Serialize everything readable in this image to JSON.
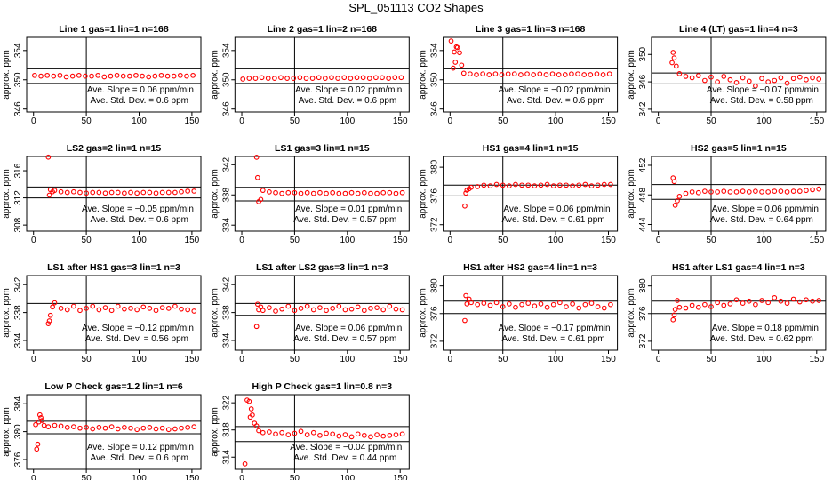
{
  "title": "SPL_051113  CO2 Shapes",
  "chart_data": [
    {
      "type": "scatter",
      "title": "Line 1 gas=1 lin=1 n=168",
      "ylabel": "approx. ppm",
      "color": "#ff0000",
      "xlim": [
        -6.5,
        158.5
      ],
      "xticks": [
        0,
        50,
        100,
        150
      ],
      "ylim": [
        345.6,
        355.8
      ],
      "yticks": [
        346,
        350,
        354
      ],
      "hlines": [
        351.5,
        349.5
      ],
      "vline": 50,
      "x": [
        1,
        7,
        13,
        19,
        25,
        31,
        37,
        43,
        49,
        55,
        61,
        67,
        73,
        79,
        85,
        91,
        97,
        103,
        109,
        115,
        121,
        127,
        133,
        139,
        145,
        151
      ],
      "values": [
        350.6,
        350.5,
        350.6,
        350.5,
        350.6,
        350.4,
        350.5,
        350.6,
        350.5,
        350.5,
        350.6,
        350.4,
        350.5,
        350.6,
        350.5,
        350.5,
        350.6,
        350.5,
        350.4,
        350.5,
        350.6,
        350.5,
        350.5,
        350.6,
        350.5,
        350.6
      ],
      "annotations": [
        "Ave. Slope = 0.06  ppm/min",
        "Ave. Std. Dev. = 0.6  ppm"
      ]
    },
    {
      "type": "scatter",
      "title": "Line 2 gas=1 lin=2 n=168",
      "ylabel": "approx. ppm",
      "color": "#ff0000",
      "xlim": [
        -6.5,
        158.5
      ],
      "xticks": [
        0,
        50,
        100,
        150
      ],
      "ylim": [
        345.6,
        355.8
      ],
      "yticks": [
        346,
        350,
        354
      ],
      "hlines": [
        351.5,
        349.5
      ],
      "vline": 50,
      "x": [
        1,
        7,
        13,
        19,
        25,
        31,
        37,
        43,
        49,
        55,
        61,
        67,
        73,
        79,
        85,
        91,
        97,
        103,
        109,
        115,
        121,
        127,
        133,
        139,
        145,
        151
      ],
      "values": [
        350.1,
        350.2,
        350.2,
        350.3,
        350.2,
        350.2,
        350.3,
        350.2,
        350.2,
        350.3,
        350.2,
        350.2,
        350.3,
        350.2,
        350.3,
        350.2,
        350.3,
        350.2,
        350.3,
        350.3,
        350.2,
        350.3,
        350.3,
        350.2,
        350.3,
        350.3
      ],
      "annotations": [
        "Ave. Slope = 0.02  ppm/min",
        "Ave. Std. Dev. = 0.6  ppm"
      ]
    },
    {
      "type": "scatter",
      "title": "Line 3 gas=1 lin=3 n=168",
      "ylabel": "approx. ppm",
      "color": "#ff0000",
      "xlim": [
        -6.5,
        158.5
      ],
      "xticks": [
        0,
        50,
        100,
        150
      ],
      "ylim": [
        345.6,
        355.8
      ],
      "yticks": [
        346,
        350,
        354
      ],
      "hlines": [
        351.5,
        349.5
      ],
      "vline": 50,
      "x": [
        1,
        3,
        4,
        5,
        6,
        7,
        9,
        11,
        13,
        19,
        25,
        31,
        37,
        43,
        49,
        55,
        61,
        67,
        73,
        79,
        85,
        91,
        97,
        103,
        109,
        115,
        121,
        127,
        133,
        139,
        145,
        151
      ],
      "values": [
        355.3,
        351.6,
        353.8,
        352.4,
        354.5,
        354.4,
        353.7,
        352.0,
        350.9,
        350.8,
        350.7,
        350.8,
        350.7,
        350.8,
        350.7,
        350.8,
        350.8,
        350.7,
        350.8,
        350.7,
        350.8,
        350.7,
        350.8,
        350.7,
        350.7,
        350.8,
        350.8,
        350.7,
        350.7,
        350.8,
        350.7,
        350.8
      ],
      "annotations": [
        "Ave. Slope = −0.02  ppm/min",
        "Ave. Std. Dev. = 0.6  ppm"
      ]
    },
    {
      "type": "scatter",
      "title": "Line 4 (LT) gas=1 lin=4 n=3",
      "ylabel": "approx. ppm",
      "color": "#ff0000",
      "xlim": [
        -6.5,
        158.5
      ],
      "xticks": [
        0,
        50,
        100,
        150
      ],
      "ylim": [
        341.6,
        352.5
      ],
      "yticks": [
        342,
        346,
        350
      ],
      "hlines": [
        347.3,
        345.7
      ],
      "vline": 50,
      "x": [
        13,
        14,
        15,
        17,
        20,
        26,
        32,
        38,
        44,
        50,
        56,
        62,
        68,
        74,
        80,
        86,
        92,
        98,
        104,
        110,
        116,
        122,
        128,
        134,
        140,
        146,
        152
      ],
      "values": [
        348.8,
        350.3,
        349.5,
        348.3,
        347.2,
        346.8,
        346.6,
        346.9,
        346.2,
        346.7,
        346.0,
        346.8,
        346.3,
        345.9,
        346.6,
        346.1,
        345.4,
        346.5,
        346.0,
        346.2,
        346.6,
        345.8,
        346.5,
        346.7,
        346.3,
        346.6,
        346.4
      ],
      "annotations": [
        "Ave. Slope = −0.07  ppm/min",
        "Ave. Std. Dev. = 0.58  ppm"
      ]
    },
    {
      "type": "scatter",
      "title": "LS2 gas=2 lin=1 n=15",
      "ylabel": "approx. ppm",
      "color": "#ff0000",
      "xlim": [
        -6.5,
        158.5
      ],
      "xticks": [
        0,
        50,
        100,
        150
      ],
      "ylim": [
        307.1,
        318.1
      ],
      "yticks": [
        308,
        312,
        316
      ],
      "hlines": [
        313.6,
        312.0
      ],
      "vline": 50,
      "x": [
        14,
        15,
        16,
        18,
        20,
        26,
        32,
        38,
        44,
        50,
        56,
        62,
        68,
        74,
        80,
        86,
        92,
        98,
        104,
        110,
        116,
        122,
        128,
        134,
        140,
        146,
        152
      ],
      "values": [
        318.0,
        312.4,
        313.2,
        312.9,
        313.1,
        312.9,
        312.8,
        312.9,
        312.8,
        312.7,
        312.8,
        312.8,
        312.7,
        312.8,
        312.8,
        312.7,
        312.8,
        312.7,
        312.8,
        312.8,
        312.7,
        312.8,
        312.8,
        312.8,
        312.9,
        313.0,
        313.0
      ],
      "annotations": [
        "Ave. Slope = −0.05  ppm/min",
        "Ave. Std. Dev. = 0.6  ppm"
      ]
    },
    {
      "type": "scatter",
      "title": "LS1 gas=3 lin=1 n=15",
      "ylabel": "approx. ppm",
      "color": "#ff0000",
      "xlim": [
        -6.5,
        158.5
      ],
      "xticks": [
        0,
        50,
        100,
        150
      ],
      "ylim": [
        333.2,
        343.1
      ],
      "yticks": [
        334,
        338,
        342
      ],
      "hlines": [
        339.0,
        337.2
      ],
      "vline": 50,
      "x": [
        14,
        15,
        16,
        18,
        20,
        26,
        32,
        38,
        44,
        50,
        56,
        62,
        68,
        74,
        80,
        86,
        92,
        98,
        104,
        110,
        116,
        122,
        128,
        134,
        140,
        146,
        152
      ],
      "values": [
        343.0,
        340.3,
        337.1,
        337.4,
        338.6,
        338.4,
        338.3,
        338.2,
        338.3,
        338.3,
        338.2,
        338.3,
        338.2,
        338.3,
        338.2,
        338.3,
        338.2,
        338.2,
        338.3,
        338.2,
        338.3,
        338.2,
        338.2,
        338.3,
        338.3,
        338.2,
        338.3
      ],
      "annotations": [
        "Ave. Slope = 0.01  ppm/min",
        "Ave. Std. Dev. = 0.57  ppm"
      ]
    },
    {
      "type": "scatter",
      "title": "HS1 gas=4 lin=1 n=15",
      "ylabel": "approx. ppm",
      "color": "#ff0000",
      "xlim": [
        -6.5,
        158.5
      ],
      "xticks": [
        0,
        50,
        100,
        150
      ],
      "ylim": [
        371.1,
        381.5
      ],
      "yticks": [
        372,
        376,
        380
      ],
      "hlines": [
        377.5,
        376.0
      ],
      "vline": 50,
      "x": [
        14,
        15,
        16,
        18,
        20,
        26,
        32,
        38,
        44,
        50,
        56,
        62,
        68,
        74,
        80,
        86,
        92,
        98,
        104,
        110,
        116,
        122,
        128,
        134,
        140,
        146,
        152
      ],
      "values": [
        374.6,
        376.4,
        376.8,
        377.0,
        377.2,
        377.3,
        377.5,
        377.4,
        377.6,
        377.5,
        377.4,
        377.6,
        377.5,
        377.5,
        377.4,
        377.5,
        377.6,
        377.4,
        377.5,
        377.5,
        377.4,
        377.5,
        377.6,
        377.4,
        377.5,
        377.6,
        377.6
      ],
      "annotations": [
        "Ave. Slope = 0.06  ppm/min",
        "Ave. Std. Dev. = 0.61  ppm"
      ]
    },
    {
      "type": "scatter",
      "title": "HS2 gas=5 lin=1 n=15",
      "ylabel": "approx. ppm",
      "color": "#ff0000",
      "xlim": [
        -6.5,
        158.5
      ],
      "xticks": [
        0,
        50,
        100,
        150
      ],
      "ylim": [
        443.1,
        453.2
      ],
      "yticks": [
        444,
        448,
        452
      ],
      "hlines": [
        449.4,
        447.4
      ],
      "vline": 50,
      "x": [
        14,
        15,
        16,
        18,
        20,
        26,
        32,
        38,
        44,
        50,
        56,
        62,
        68,
        74,
        80,
        86,
        92,
        98,
        104,
        110,
        116,
        122,
        128,
        134,
        140,
        146,
        152
      ],
      "values": [
        450.3,
        449.8,
        446.6,
        447.2,
        447.8,
        448.2,
        448.4,
        448.3,
        448.5,
        448.4,
        448.4,
        448.5,
        448.4,
        448.4,
        448.5,
        448.4,
        448.5,
        448.4,
        448.4,
        448.5,
        448.5,
        448.4,
        448.5,
        448.5,
        448.6,
        448.7,
        448.8
      ],
      "annotations": [
        "Ave. Slope = 0.06  ppm/min",
        "Ave. Std. Dev. = 0.64  ppm"
      ]
    },
    {
      "type": "scatter",
      "title": "LS1 after HS1 gas=3 lin=1 n=3",
      "ylabel": "approx. ppm",
      "color": "#ff0000",
      "xlim": [
        -6.5,
        158.5
      ],
      "xticks": [
        0,
        50,
        100,
        150
      ],
      "ylim": [
        332.6,
        343.3
      ],
      "yticks": [
        334,
        338,
        342
      ],
      "hlines": [
        339.3,
        337.5
      ],
      "vline": 50,
      "x": [
        14,
        15,
        16,
        18,
        20,
        26,
        32,
        38,
        44,
        50,
        56,
        62,
        68,
        74,
        80,
        86,
        92,
        98,
        104,
        110,
        116,
        122,
        128,
        134,
        140,
        146,
        152
      ],
      "values": [
        336.4,
        336.8,
        337.6,
        338.8,
        339.4,
        338.6,
        338.4,
        338.9,
        338.3,
        338.6,
        338.9,
        338.4,
        338.7,
        338.3,
        338.9,
        338.5,
        338.6,
        338.4,
        338.8,
        338.6,
        338.3,
        338.7,
        338.6,
        338.9,
        338.5,
        338.4,
        338.2
      ],
      "annotations": [
        "Ave. Slope = −0.12  ppm/min",
        "Ave. Std. Dev. = 0.56  ppm"
      ]
    },
    {
      "type": "scatter",
      "title": "LS1 after LS2 gas=3 lin=1 n=3",
      "ylabel": "approx. ppm",
      "color": "#ff0000",
      "xlim": [
        -6.5,
        158.5
      ],
      "xticks": [
        0,
        50,
        100,
        150
      ],
      "ylim": [
        332.6,
        343.3
      ],
      "yticks": [
        334,
        338,
        342
      ],
      "hlines": [
        339.3,
        337.6
      ],
      "vline": 50,
      "x": [
        14,
        15,
        16,
        18,
        20,
        26,
        32,
        38,
        44,
        50,
        56,
        62,
        68,
        74,
        80,
        86,
        92,
        98,
        104,
        110,
        116,
        122,
        128,
        134,
        140,
        146,
        152
      ],
      "values": [
        336.0,
        339.2,
        338.4,
        338.8,
        338.3,
        338.7,
        338.2,
        338.5,
        338.9,
        338.3,
        338.6,
        338.9,
        338.4,
        338.7,
        338.3,
        338.6,
        338.9,
        338.4,
        338.5,
        338.8,
        338.3,
        338.6,
        338.7,
        338.4,
        338.9,
        338.5,
        338.4
      ],
      "annotations": [
        "Ave. Slope = 0.06  ppm/min",
        "Ave. Std. Dev. = 0.57  ppm"
      ]
    },
    {
      "type": "scatter",
      "title": "HS1 after HS2 gas=4 lin=1 n=3",
      "ylabel": "approx. ppm",
      "color": "#ff0000",
      "xlim": [
        -6.5,
        158.5
      ],
      "xticks": [
        0,
        50,
        100,
        150
      ],
      "ylim": [
        370.7,
        381.5
      ],
      "yticks": [
        372,
        376,
        380
      ],
      "hlines": [
        377.8,
        376.0
      ],
      "vline": 50,
      "x": [
        14,
        15,
        16,
        18,
        20,
        26,
        32,
        38,
        44,
        50,
        56,
        62,
        68,
        74,
        80,
        86,
        92,
        98,
        104,
        110,
        116,
        122,
        128,
        134,
        140,
        146,
        152
      ],
      "values": [
        375.0,
        378.6,
        377.4,
        378.1,
        377.6,
        377.3,
        377.5,
        377.2,
        377.6,
        377.0,
        377.4,
        376.9,
        377.3,
        377.5,
        377.1,
        377.4,
        376.9,
        377.3,
        377.6,
        377.0,
        377.4,
        376.8,
        377.3,
        377.5,
        377.0,
        376.8,
        377.3
      ],
      "annotations": [
        "Ave. Slope = −0.17  ppm/min",
        "Ave. Std. Dev. = 0.61  ppm"
      ]
    },
    {
      "type": "scatter",
      "title": "HS1 after LS1 gas=4 lin=1 n=3",
      "ylabel": "approx. ppm",
      "color": "#ff0000",
      "xlim": [
        -6.5,
        158.5
      ],
      "xticks": [
        0,
        50,
        100,
        150
      ],
      "ylim": [
        370.7,
        381.5
      ],
      "yticks": [
        372,
        376,
        380
      ],
      "hlines": [
        377.8,
        376.0
      ],
      "vline": 50,
      "x": [
        14,
        15,
        16,
        18,
        20,
        26,
        32,
        38,
        44,
        50,
        56,
        62,
        68,
        74,
        80,
        86,
        92,
        98,
        104,
        110,
        116,
        122,
        128,
        134,
        140,
        146,
        152
      ],
      "values": [
        375.1,
        375.8,
        376.6,
        377.9,
        376.9,
        376.8,
        377.2,
        376.9,
        377.3,
        377.0,
        377.6,
        377.2,
        377.4,
        378.0,
        377.5,
        377.8,
        377.3,
        377.9,
        377.6,
        378.3,
        377.8,
        377.5,
        378.1,
        377.7,
        378.0,
        377.8,
        377.9
      ],
      "annotations": [
        "Ave. Slope = 0.18  ppm/min",
        "Ave. Std. Dev. = 0.62  ppm"
      ]
    },
    {
      "type": "scatter",
      "title": "Low P Check gas=1.2 lin=1 n=6",
      "ylabel": "approx. ppm",
      "color": "#ff0000",
      "xlim": [
        -6.5,
        158.5
      ],
      "xticks": [
        0,
        50,
        100,
        150
      ],
      "ylim": [
        374.6,
        385.3
      ],
      "yticks": [
        376,
        380,
        384
      ],
      "hlines": [
        381.5,
        379.7
      ],
      "vline": 50,
      "x": [
        2,
        3,
        4,
        5,
        6,
        7,
        8,
        10,
        14,
        20,
        26,
        32,
        38,
        44,
        50,
        56,
        62,
        68,
        74,
        80,
        86,
        92,
        98,
        104,
        110,
        116,
        122,
        128,
        134,
        140,
        146,
        152
      ],
      "values": [
        381.0,
        377.5,
        378.2,
        381.4,
        382.4,
        382.0,
        381.6,
        380.9,
        380.7,
        380.9,
        380.8,
        380.6,
        380.7,
        380.5,
        380.6,
        380.4,
        380.6,
        380.5,
        380.7,
        380.4,
        380.6,
        380.5,
        380.3,
        380.5,
        380.6,
        380.4,
        380.5,
        380.3,
        380.4,
        380.5,
        380.6,
        380.7
      ],
      "annotations": [
        "Ave. Slope = 0.12  ppm/min",
        "Ave. Std. Dev. = 0.6  ppm"
      ]
    },
    {
      "type": "scatter",
      "title": "High P Check gas=1 lin=0.8 n=3",
      "ylabel": "approx. ppm",
      "color": "#ff0000",
      "xlim": [
        -6.5,
        158.5
      ],
      "xticks": [
        0,
        50,
        100,
        150
      ],
      "ylim": [
        312.2,
        323.2
      ],
      "yticks": [
        314,
        318,
        322
      ],
      "hlines": [
        318.5,
        316.3
      ],
      "vline": 50,
      "x": [
        3,
        5,
        7,
        8,
        9,
        10,
        12,
        14,
        16,
        20,
        26,
        32,
        38,
        44,
        50,
        56,
        62,
        68,
        74,
        80,
        86,
        92,
        98,
        104,
        110,
        116,
        122,
        128,
        134,
        140,
        146,
        152
      ],
      "values": [
        313.0,
        322.4,
        322.2,
        319.9,
        321.1,
        320.2,
        319.0,
        318.6,
        317.9,
        317.6,
        317.7,
        317.4,
        317.6,
        317.3,
        317.5,
        317.8,
        317.3,
        317.6,
        317.2,
        317.5,
        317.4,
        317.1,
        317.3,
        317.0,
        317.4,
        317.2,
        317.0,
        317.3,
        317.1,
        317.2,
        317.3,
        317.4
      ],
      "annotations": [
        "Ave. Slope = −0.04  ppm/min",
        "Ave. Std. Dev. = 0.44  ppm"
      ]
    }
  ]
}
